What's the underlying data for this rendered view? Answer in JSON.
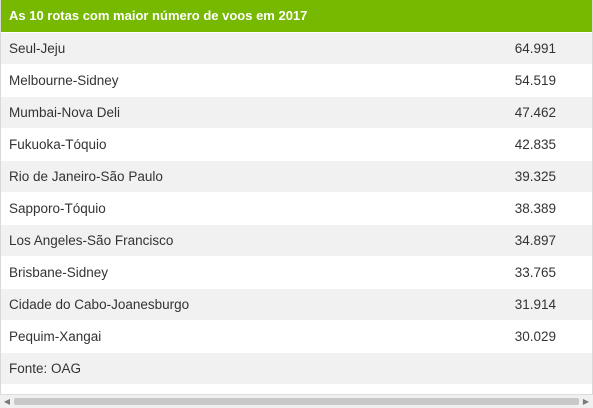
{
  "table": {
    "title": "As 10 rotas com maior número de voos em 2017",
    "rows": [
      {
        "route": "Seul-Jeju",
        "value": "64.991"
      },
      {
        "route": "Melbourne-Sidney",
        "value": "54.519"
      },
      {
        "route": "Mumbai-Nova Deli",
        "value": "47.462"
      },
      {
        "route": "Fukuoka-Tóquio",
        "value": "42.835"
      },
      {
        "route": "Rio de Janeiro-São Paulo",
        "value": "39.325"
      },
      {
        "route": "Sapporo-Tóquio",
        "value": "38.389"
      },
      {
        "route": "Los Angeles-São Francisco",
        "value": "34.897"
      },
      {
        "route": "Brisbane-Sidney",
        "value": "33.765"
      },
      {
        "route": "Cidade do Cabo-Joanesburgo",
        "value": "31.914"
      },
      {
        "route": "Pequim-Xangai",
        "value": "30.029"
      }
    ],
    "source": "Fonte: OAG"
  },
  "colors": {
    "header_bg": "#76b900",
    "row_alt_bg": "#f1f1f1"
  },
  "icons": {
    "scroll_left": "scroll-left-arrow-icon",
    "scroll_right": "scroll-right-arrow-icon"
  }
}
